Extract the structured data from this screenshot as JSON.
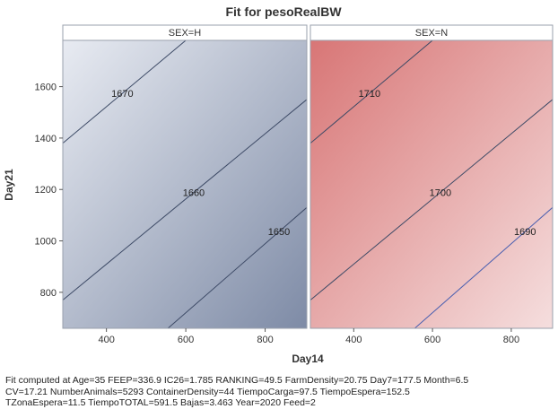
{
  "chart_data": {
    "type": "heatmap",
    "title": "Fit for pesoRealBW",
    "xlabel": "Day14",
    "ylabel": "Day21",
    "xlim": [
      290,
      905
    ],
    "ylim": [
      660,
      1780
    ],
    "x_ticks": [
      400,
      600,
      800
    ],
    "y_ticks": [
      800,
      1000,
      1200,
      1400,
      1600
    ],
    "panels": [
      {
        "label": "SEX=H",
        "color_low": "#7e8ba6",
        "color_high": "#e8ebf2",
        "low_value": 1642,
        "high_value": 1676,
        "contours": [
          {
            "level": 1670,
            "label": "1670",
            "p1": [
              290,
              1380
            ],
            "p2": [
              600,
              1780
            ],
            "label_at": [
              440,
              1670
            ]
          },
          {
            "level": 1660,
            "label": "1660",
            "p1": [
              290,
              770
            ],
            "p2": [
              905,
              1550
            ],
            "label_at": [
              620,
              1660
            ]
          },
          {
            "level": 1650,
            "label": "1650",
            "p1": [
              555,
              660
            ],
            "p2": [
              905,
              1130
            ],
            "label_at": [
              835,
              1650
            ]
          }
        ]
      },
      {
        "label": "SEX=N",
        "color_low": "#f5dede",
        "color_high": "#d87676",
        "low_value": 1684,
        "high_value": 1718,
        "contours": [
          {
            "level": 1710,
            "label": "1710",
            "p1": [
              290,
              1380
            ],
            "p2": [
              600,
              1780
            ],
            "label_at": [
              440,
              1710
            ]
          },
          {
            "level": 1700,
            "label": "1700",
            "p1": [
              290,
              770
            ],
            "p2": [
              905,
              1550
            ],
            "label_at": [
              620,
              1700
            ]
          },
          {
            "level": 1690,
            "label": "1690",
            "p1": [
              555,
              660
            ],
            "p2": [
              905,
              1130
            ],
            "label_at": [
              835,
              1690
            ]
          }
        ]
      }
    ],
    "footnote": [
      "Fit computed at Age=35 FEEP=336.9 IC26=1.785 RANKING=49.5 FarmDensity=20.75 Day7=177.5 Month=6.5",
      "CV=17.21 NumberAnimals=5293 ContainerDensity=44 TiempoCarga=97.5 TiempoEspera=152.5",
      "TZonaEspera=11.5 TiempoTOTAL=591.5 Bajas=3.463 Year=2020 Feed=2"
    ]
  }
}
